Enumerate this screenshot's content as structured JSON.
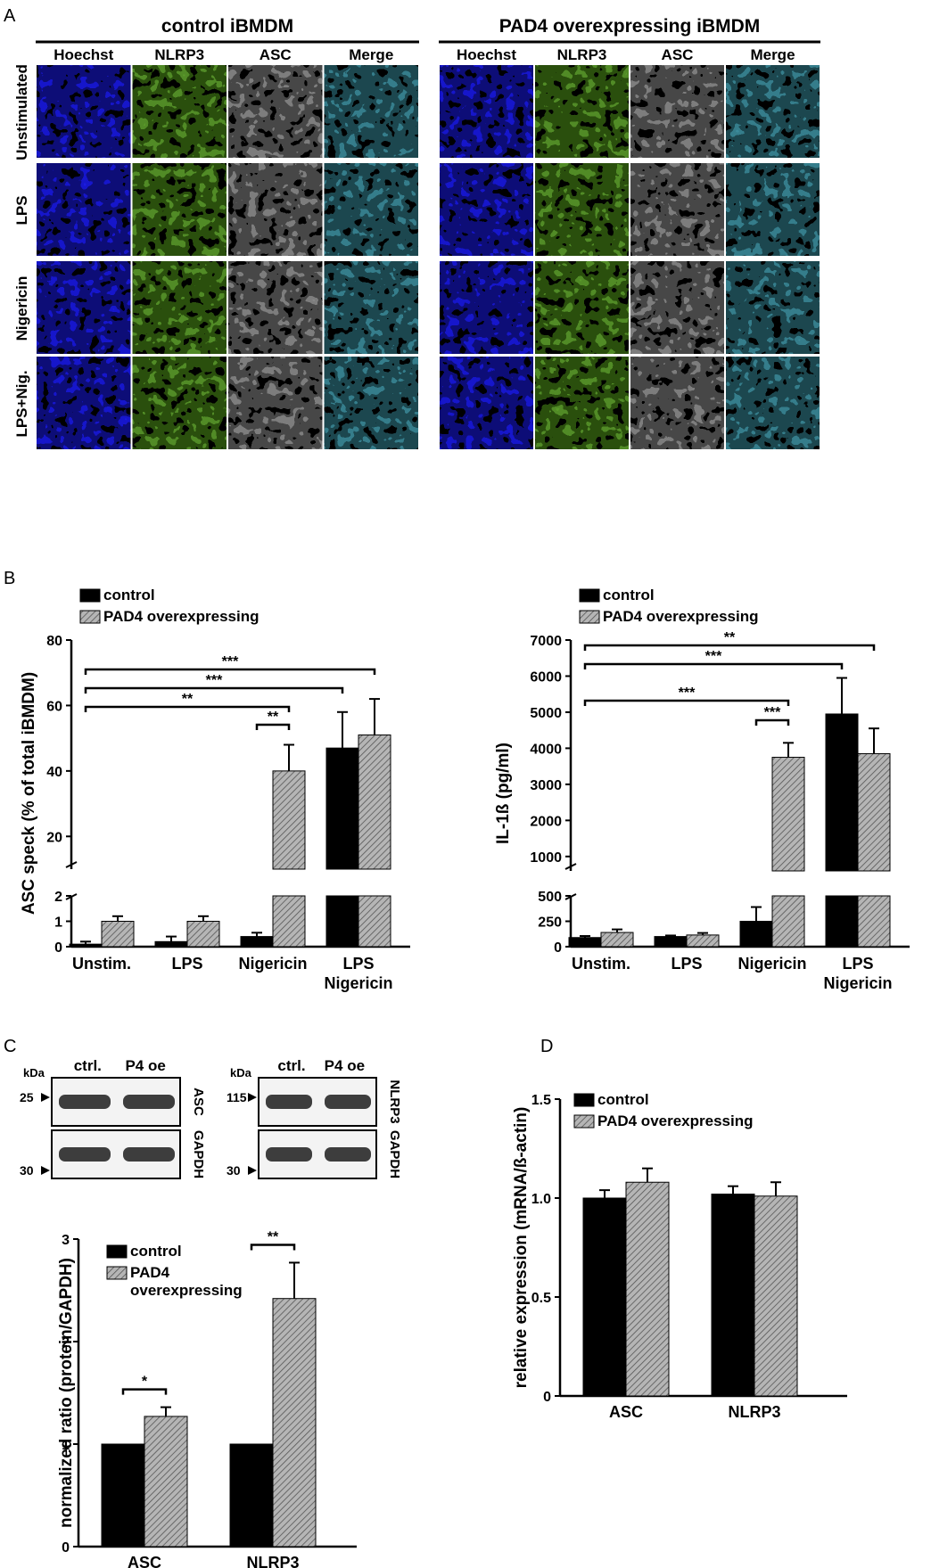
{
  "panel_a": {
    "letter": "A",
    "groups": [
      {
        "title": "control iBMDM",
        "tint": "low"
      },
      {
        "title": "PAD4 overexpressing iBMDM",
        "tint": "high"
      }
    ],
    "columns": [
      "Hoechst",
      "NLRP3",
      "ASC",
      "Merge"
    ],
    "rows": [
      "Unstimulated",
      "LPS",
      "Nigericin",
      "LPS+Nig."
    ],
    "channel_colors": {
      "Hoechst": "#1a1ae0",
      "NLRP3": "#5a9a2a",
      "ASC": "#8a8a8a",
      "Merge": "#3a8a9a"
    }
  },
  "colors": {
    "control": "#000000",
    "pad4": "#8c8c8c"
  },
  "chart_data": [
    {
      "id": "B-left",
      "letter": "B",
      "type": "bar",
      "ylabel": "ASC speck (% of total iBMDM)",
      "categories": [
        "Unstim.",
        "LPS",
        "Nigericin",
        "LPS\nNigericin"
      ],
      "legend": [
        "control",
        "PAD4 overexpressing"
      ],
      "series": [
        {
          "name": "control",
          "values": [
            0.1,
            0.2,
            0.4,
            47
          ],
          "errors": [
            0.1,
            0.2,
            0.15,
            11
          ]
        },
        {
          "name": "PAD4 overexpressing",
          "values": [
            1.0,
            1.0,
            40,
            51
          ],
          "errors": [
            0.2,
            0.2,
            8,
            11
          ]
        }
      ],
      "broken_axis": true,
      "lower_ticks": [
        "0",
        "1",
        "2"
      ],
      "upper_ticks": [
        "20",
        "40",
        "60",
        "80"
      ],
      "significance": [
        {
          "text": "***",
          "from": "Unstim.",
          "to": "LPS Nigericin (PAD4)"
        },
        {
          "text": "***",
          "from": "Unstim.",
          "to": "LPS Nigericin (control)"
        },
        {
          "text": "**",
          "from": "Unstim.",
          "to": "Nigericin (PAD4)"
        },
        {
          "text": "**",
          "from": "Nigericin (control)",
          "to": "Nigericin (PAD4)"
        }
      ]
    },
    {
      "id": "B-right",
      "type": "bar",
      "ylabel": "IL-1ß (pg/ml)",
      "categories": [
        "Unstim.",
        "LPS",
        "Nigericin",
        "LPS\nNigericin"
      ],
      "legend": [
        "control",
        "PAD4 overexpressing"
      ],
      "series": [
        {
          "name": "control",
          "values": [
            90,
            100,
            250,
            4950
          ],
          "errors": [
            15,
            10,
            140,
            1000
          ]
        },
        {
          "name": "PAD4 overexpressing",
          "values": [
            140,
            115,
            3750,
            3850
          ],
          "errors": [
            30,
            20,
            400,
            700
          ]
        }
      ],
      "broken_axis": true,
      "lower_ticks": [
        "0",
        "250",
        "500"
      ],
      "upper_ticks": [
        "1000",
        "2000",
        "3000",
        "4000",
        "5000",
        "6000",
        "7000"
      ],
      "significance": [
        {
          "text": "**",
          "from": "Unstim.",
          "to": "LPS Nigericin (PAD4)"
        },
        {
          "text": "***",
          "from": "Unstim.",
          "to": "LPS Nigericin (control)"
        },
        {
          "text": "***",
          "from": "Unstim.",
          "to": "Nigericin (PAD4)"
        },
        {
          "text": "***",
          "from": "Nigericin (control)",
          "to": "Nigericin (PAD4)"
        }
      ]
    },
    {
      "id": "C",
      "letter": "C",
      "type": "bar",
      "ylabel": "normalized ratio (protein/GAPDH)",
      "categories": [
        "ASC",
        "NLRP3"
      ],
      "legend": [
        "control",
        "PAD4\noverexpressing"
      ],
      "series": [
        {
          "name": "control",
          "values": [
            1.0,
            1.0
          ],
          "errors": [
            0,
            0
          ]
        },
        {
          "name": "PAD4 overexpressing",
          "values": [
            1.27,
            2.42
          ],
          "errors": [
            0.09,
            0.35
          ]
        }
      ],
      "ylim": [
        0,
        3
      ],
      "ticks": [
        "0",
        "1",
        "2",
        "3"
      ],
      "significance": [
        {
          "text": "*",
          "category": "ASC"
        },
        {
          "text": "**",
          "category": "NLRP3"
        }
      ]
    },
    {
      "id": "D",
      "letter": "D",
      "type": "bar",
      "ylabel": "relative expression (mRNA/ß-actin)",
      "categories": [
        "ASC",
        "NLRP3"
      ],
      "legend": [
        "control",
        "PAD4 overexpressing"
      ],
      "series": [
        {
          "name": "control",
          "values": [
            1.0,
            1.02
          ],
          "errors": [
            0.04,
            0.04
          ]
        },
        {
          "name": "PAD4 overexpressing",
          "values": [
            1.08,
            1.01
          ],
          "errors": [
            0.07,
            0.07
          ]
        }
      ],
      "ylim": [
        0,
        1.5
      ],
      "ticks": [
        "0",
        "0.5",
        "1.0",
        "1.5"
      ]
    }
  ],
  "blots": {
    "kda_label": "kDa",
    "lanes": [
      "ctrl.",
      "P4 oe"
    ],
    "left": {
      "protein": "ASC",
      "loading": "GAPDH",
      "marker_top": "25",
      "marker_bottom": "30"
    },
    "right": {
      "protein": "NLRP3",
      "loading": "GAPDH",
      "marker_top": "115",
      "marker_bottom": "30"
    }
  }
}
